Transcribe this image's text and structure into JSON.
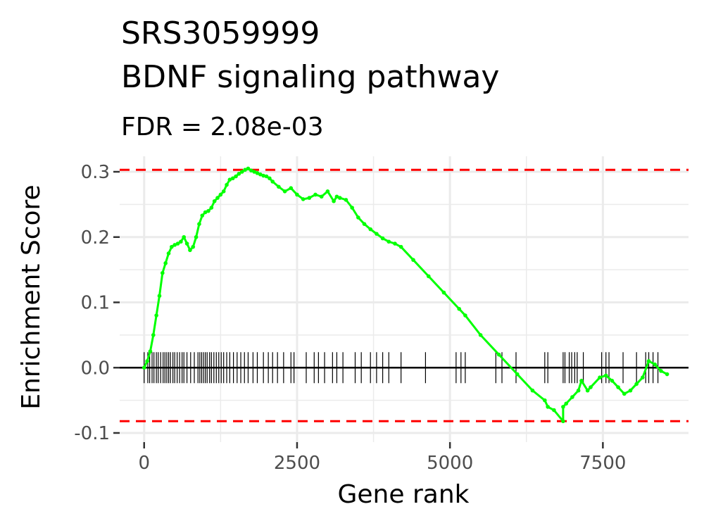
{
  "chart_data": {
    "type": "line",
    "title_lines": [
      "SRS3059999",
      "BDNF signaling pathway"
    ],
    "subtitle": "FDR = 2.08e-03",
    "xlabel": "Gene rank",
    "ylabel": "Enrichment Score",
    "xlim": [
      -400,
      8900
    ],
    "ylim": [
      -0.1,
      0.3
    ],
    "x_ticks": [
      0,
      2500,
      5000,
      7500
    ],
    "x_tick_labels": [
      "0",
      "2500",
      "5000",
      "7500"
    ],
    "y_ticks": [
      -0.1,
      0.0,
      0.1,
      0.2,
      0.3
    ],
    "y_tick_labels": [
      "-0.1",
      "0.0",
      "0.1",
      "0.2",
      "0.3"
    ],
    "grid": true,
    "colors": {
      "curve": "#00ff00",
      "thresholds": "#ff0000",
      "baseline": "#000000",
      "ticks": "#000000",
      "grid": "#ebebeb"
    },
    "thresholds": [
      0.303,
      -0.082
    ],
    "series": [
      {
        "x": [
          0,
          50,
          100,
          150,
          200,
          250,
          300,
          350,
          400,
          450,
          500,
          550,
          600,
          650,
          700,
          750,
          800,
          850,
          900,
          950,
          1000,
          1050,
          1100,
          1150,
          1200,
          1250,
          1300,
          1350,
          1400,
          1450,
          1500,
          1550,
          1600,
          1650,
          1700,
          1750,
          1800,
          1850,
          1900,
          1950,
          2000,
          2050,
          2100,
          2200,
          2300,
          2400,
          2500,
          2600,
          2700,
          2800,
          2900,
          3000,
          3100,
          3150,
          3200,
          3300,
          3400,
          3500,
          3600,
          3700,
          3800,
          3900,
          4000,
          4100,
          4200,
          4400,
          4650,
          4900,
          5150,
          5250,
          5500,
          5800,
          6100,
          6350,
          6550,
          6600,
          6700,
          6850,
          6850,
          6900,
          7000,
          7100,
          7150,
          7250,
          7300,
          7450,
          7550,
          7650,
          7750,
          7850,
          7950,
          8050,
          8150,
          8250,
          8350,
          8450,
          8550
        ],
        "y": [
          0.0,
          0.01,
          0.025,
          0.05,
          0.08,
          0.11,
          0.145,
          0.16,
          0.175,
          0.185,
          0.188,
          0.19,
          0.193,
          0.2,
          0.19,
          0.18,
          0.185,
          0.2,
          0.22,
          0.233,
          0.238,
          0.24,
          0.245,
          0.255,
          0.26,
          0.265,
          0.27,
          0.28,
          0.288,
          0.29,
          0.293,
          0.297,
          0.3,
          0.303,
          0.305,
          0.302,
          0.3,
          0.298,
          0.296,
          0.294,
          0.293,
          0.29,
          0.285,
          0.277,
          0.27,
          0.275,
          0.265,
          0.258,
          0.26,
          0.265,
          0.262,
          0.27,
          0.255,
          0.262,
          0.26,
          0.257,
          0.245,
          0.23,
          0.22,
          0.212,
          0.205,
          0.198,
          0.193,
          0.19,
          0.185,
          0.165,
          0.14,
          0.115,
          0.09,
          0.08,
          0.05,
          0.02,
          -0.01,
          -0.035,
          -0.05,
          -0.06,
          -0.065,
          -0.082,
          -0.06,
          -0.055,
          -0.045,
          -0.035,
          -0.02,
          -0.035,
          -0.03,
          -0.015,
          -0.012,
          -0.02,
          -0.03,
          -0.04,
          -0.035,
          -0.025,
          -0.015,
          0.01,
          0.005,
          -0.005,
          -0.01
        ]
      }
    ],
    "gene_hits": [
      0,
      60,
      90,
      130,
      160,
      200,
      230,
      270,
      310,
      340,
      370,
      400,
      430,
      470,
      500,
      540,
      580,
      620,
      650,
      700,
      760,
      820,
      880,
      910,
      940,
      970,
      1000,
      1030,
      1070,
      1100,
      1140,
      1180,
      1220,
      1260,
      1300,
      1350,
      1400,
      1460,
      1520,
      1580,
      1640,
      1700,
      1780,
      1850,
      1950,
      2030,
      2100,
      2180,
      2280,
      2400,
      2450,
      2650,
      2780,
      2850,
      2950,
      3080,
      3150,
      3250,
      3450,
      3550,
      3700,
      3800,
      3900,
      4000,
      4200,
      4600,
      5100,
      5180,
      5250,
      5750,
      5850,
      6080,
      6550,
      6600,
      6850,
      6880,
      6950,
      6990,
      7040,
      7080,
      7180,
      7480,
      7550,
      7600,
      7830,
      8050,
      8200,
      8250,
      8320,
      8400
    ]
  }
}
